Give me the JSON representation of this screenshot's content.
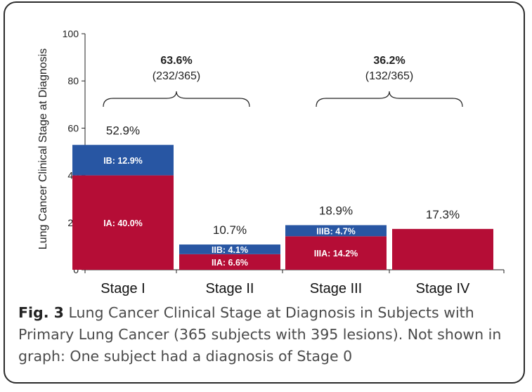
{
  "chart_data": {
    "type": "bar",
    "stacked": true,
    "categories": [
      "Stage I",
      "Stage II",
      "Stage III",
      "Stage IV"
    ],
    "series": [
      {
        "id": "A",
        "color": "#b50d36",
        "values": [
          40.0,
          6.6,
          14.2,
          17.3
        ]
      },
      {
        "id": "B",
        "color": "#2856a3",
        "values": [
          12.9,
          4.1,
          4.7,
          0
        ]
      }
    ],
    "segment_labels": {
      "A": [
        "IA: 40.0%",
        "IIA: 6.6%",
        "IIIA: 14.2%",
        ""
      ],
      "B": [
        "IB: 12.9%",
        "IIB: 4.1%",
        "IIIB: 4.7%",
        ""
      ]
    },
    "total_labels": [
      "52.9%",
      "10.7%",
      "18.9%",
      "17.3%"
    ],
    "ylabel": "Lung Cancer Clinical Stage at Diagnosis",
    "yticks": [
      0,
      20,
      40,
      60,
      80,
      100
    ],
    "ylim": [
      0,
      100
    ],
    "grid": false,
    "brackets": [
      {
        "from": 0,
        "to": 1,
        "percent": "63.6%",
        "count": "(232/365)"
      },
      {
        "from": 2,
        "to": 3,
        "percent": "36.2%",
        "count": "(132/365)"
      }
    ]
  },
  "caption": {
    "label": "Fig. 3",
    "text": "Lung Cancer Clinical Stage at Diagnosis in Subjects with Primary Lung Cancer (365 subjects with 395 lesions). Not shown in graph: One subject had a diagnosis of Stage 0"
  }
}
